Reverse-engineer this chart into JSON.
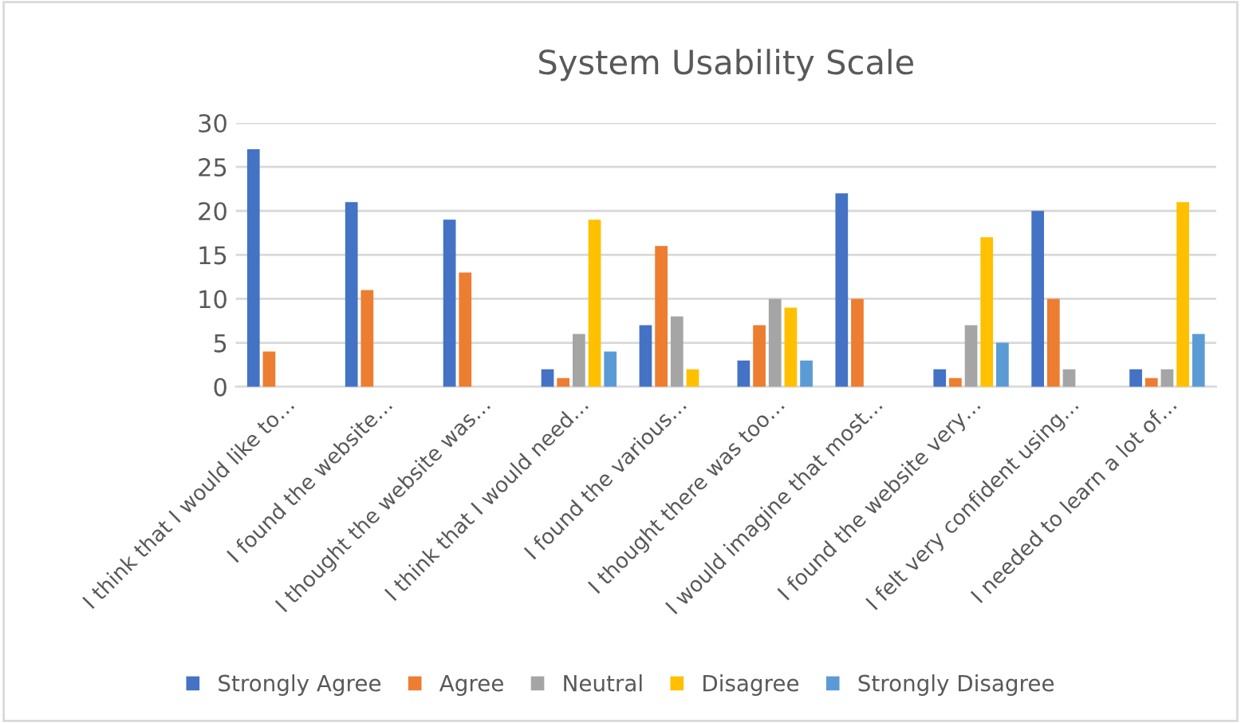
{
  "chart_data": {
    "type": "bar",
    "title": "System Usability Scale",
    "categories": [
      "I think that I would like to…",
      "I found the website…",
      "I thought the website was…",
      "I think that I would need…",
      "I found the various…",
      "I thought there was too…",
      "I would imagine that most…",
      "I found the website very…",
      "I felt very confident using…",
      "I needed to learn a lot of…"
    ],
    "series": [
      {
        "name": "Strongly Agree",
        "color": "#4472c4",
        "values": [
          27,
          21,
          19,
          2,
          7,
          3,
          22,
          2,
          20,
          2
        ]
      },
      {
        "name": "Agree",
        "color": "#ed7d31",
        "values": [
          4,
          11,
          13,
          1,
          16,
          7,
          10,
          1,
          10,
          1
        ]
      },
      {
        "name": "Neutral",
        "color": "#a5a5a5",
        "values": [
          0,
          0,
          0,
          6,
          8,
          10,
          0,
          7,
          2,
          2
        ]
      },
      {
        "name": "Disagree",
        "color": "#ffc000",
        "values": [
          0,
          0,
          0,
          19,
          2,
          9,
          0,
          17,
          0,
          21
        ]
      },
      {
        "name": "Strongly Disagree",
        "color": "#5b9bd5",
        "values": [
          0,
          0,
          0,
          4,
          0,
          3,
          0,
          5,
          0,
          6
        ]
      }
    ],
    "ylim": [
      0,
      30
    ],
    "yticks": [
      0,
      5,
      10,
      15,
      20,
      25,
      30
    ],
    "grid": "y",
    "legend": "bottom"
  }
}
